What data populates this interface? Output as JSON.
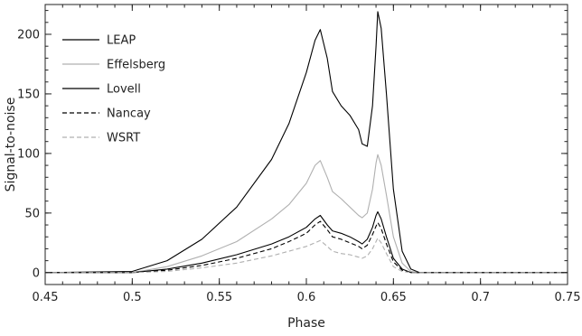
{
  "chart_data": {
    "type": "line",
    "title": "",
    "xlabel": "Phase",
    "ylabel": "Signal-to-noise",
    "xlim": [
      0.45,
      0.75
    ],
    "ylim": [
      -10,
      225
    ],
    "xticks": [
      0.45,
      0.5,
      0.55,
      0.6,
      0.65,
      0.7,
      0.75
    ],
    "xtick_labels": [
      "0.45",
      "0.5",
      "0.55",
      "0.6",
      "0.65",
      "0.7",
      "0.75"
    ],
    "yticks": [
      0,
      50,
      100,
      150,
      200
    ],
    "ytick_labels": [
      "0",
      "50",
      "100",
      "150",
      "200"
    ],
    "grid": false,
    "legend_position": "top-left",
    "x": [
      0.45,
      0.5,
      0.52,
      0.54,
      0.56,
      0.58,
      0.59,
      0.6,
      0.605,
      0.608,
      0.612,
      0.615,
      0.62,
      0.625,
      0.63,
      0.632,
      0.635,
      0.638,
      0.64,
      0.641,
      0.643,
      0.646,
      0.65,
      0.655,
      0.66,
      0.665,
      0.7,
      0.75
    ],
    "series": [
      {
        "name": "LEAP",
        "color": "#000000",
        "dash": "solid",
        "values": [
          0,
          1,
          10,
          28,
          55,
          95,
          125,
          168,
          195,
          204,
          180,
          152,
          140,
          132,
          120,
          108,
          106,
          140,
          190,
          219,
          205,
          150,
          70,
          18,
          3,
          0,
          0,
          0
        ]
      },
      {
        "name": "Effelsberg",
        "color": "#b0b0b0",
        "dash": "solid",
        "values": [
          0,
          0,
          5,
          14,
          26,
          45,
          57,
          75,
          90,
          94,
          80,
          68,
          62,
          55,
          48,
          46,
          50,
          70,
          92,
          99,
          90,
          65,
          30,
          8,
          1,
          0,
          0,
          0
        ]
      },
      {
        "name": "Lovell",
        "color": "#000000",
        "dash": "solid",
        "values": [
          0,
          0,
          3,
          8,
          15,
          24,
          30,
          38,
          45,
          48,
          40,
          35,
          33,
          30,
          26,
          24,
          28,
          38,
          48,
          51,
          45,
          30,
          12,
          3,
          0,
          0,
          0,
          0
        ]
      },
      {
        "name": "Nancay",
        "color": "#000000",
        "dash": "dashed",
        "values": [
          0,
          0,
          2,
          6,
          12,
          20,
          26,
          33,
          40,
          43,
          36,
          30,
          28,
          25,
          22,
          20,
          23,
          32,
          39,
          42,
          37,
          24,
          9,
          2,
          0,
          0,
          0,
          0
        ]
      },
      {
        "name": "WSRT",
        "color": "#b0b0b0",
        "dash": "dashed",
        "values": [
          0,
          0,
          1,
          4,
          8,
          14,
          18,
          22,
          25,
          27,
          22,
          18,
          16,
          15,
          13,
          12,
          14,
          20,
          26,
          29,
          25,
          16,
          5,
          1,
          0,
          0,
          0,
          0
        ]
      }
    ]
  }
}
